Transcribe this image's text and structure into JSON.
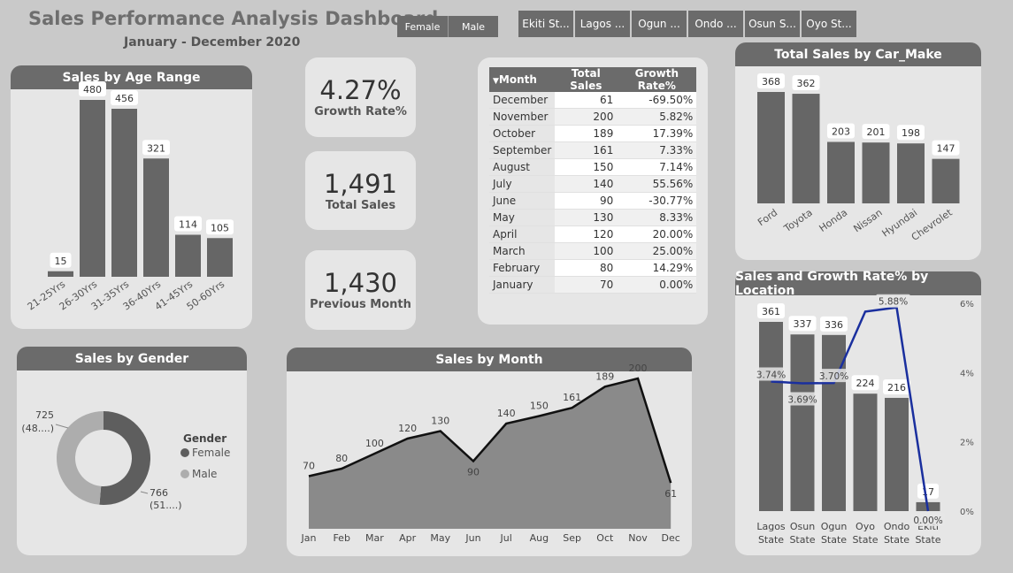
{
  "header": {
    "title": "Sales Performance Analysis Dashboard",
    "subtitle": "January - December 2020"
  },
  "gender_slicer": [
    "Female",
    "Male"
  ],
  "state_slicer": [
    "Ekiti St...",
    "Lagos ...",
    "Ogun ...",
    "Ondo ...",
    "Osun S...",
    "Oyo St..."
  ],
  "kpis": {
    "growth_rate": {
      "value": "4.27%",
      "label": "Growth Rate%"
    },
    "total_sales": {
      "value": "1,491",
      "label": "Total Sales"
    },
    "previous_month": {
      "value": "1,430",
      "label": "Previous Month"
    }
  },
  "colors": {
    "bar": "#666666",
    "line": "#1a2f9e",
    "area": "#8a8a8a",
    "panel": "#e6e6e6",
    "header": "#6b6b6b"
  },
  "chart_data": [
    {
      "type": "bar",
      "title": "Sales by Age Range",
      "categories": [
        "21-25Yrs",
        "26-30Yrs",
        "31-35Yrs",
        "36-40Yrs",
        "41-45Yrs",
        "50-60Yrs"
      ],
      "values": [
        15,
        480,
        456,
        321,
        114,
        105
      ]
    },
    {
      "type": "table",
      "columns": [
        "Month",
        "Total Sales",
        "Growth Rate%"
      ],
      "rows": [
        [
          "December",
          "61",
          "-69.50%"
        ],
        [
          "November",
          "200",
          "5.82%"
        ],
        [
          "October",
          "189",
          "17.39%"
        ],
        [
          "September",
          "161",
          "7.33%"
        ],
        [
          "August",
          "150",
          "7.14%"
        ],
        [
          "July",
          "140",
          "55.56%"
        ],
        [
          "June",
          "90",
          "-30.77%"
        ],
        [
          "May",
          "130",
          "8.33%"
        ],
        [
          "April",
          "120",
          "20.00%"
        ],
        [
          "March",
          "100",
          "25.00%"
        ],
        [
          "February",
          "80",
          "14.29%"
        ],
        [
          "January",
          "70",
          "0.00%"
        ]
      ]
    },
    {
      "type": "bar",
      "title": "Total Sales by Car_Make",
      "categories": [
        "Ford",
        "Toyota",
        "Honda",
        "Nissan",
        "Hyundai",
        "Chevrolet"
      ],
      "values": [
        368,
        362,
        203,
        201,
        198,
        147
      ]
    },
    {
      "type": "pie",
      "title": "Sales by Gender",
      "legend_title": "Gender",
      "legend_position": "right",
      "slices": [
        {
          "name": "Female",
          "value": 766,
          "label": "766",
          "pct_label": "(51....)",
          "color": "#5e5e5e"
        },
        {
          "name": "Male",
          "value": 725,
          "label": "725",
          "pct_label": "(48....)",
          "color": "#adadad"
        }
      ]
    },
    {
      "type": "area",
      "title": "Sales by Month",
      "categories": [
        "Jan",
        "Feb",
        "Mar",
        "Apr",
        "May",
        "Jun",
        "Jul",
        "Aug",
        "Sep",
        "Oct",
        "Nov",
        "Dec"
      ],
      "values": [
        70,
        80,
        100,
        120,
        130,
        90,
        140,
        150,
        161,
        189,
        200,
        61
      ]
    },
    {
      "type": "bar",
      "title": "Sales and Growth Rate% by Location",
      "categories": [
        "Lagos State",
        "Osun State",
        "Ogun State",
        "Oyo State",
        "Ondo State",
        "Ekiti State"
      ],
      "series": [
        {
          "values": [
            361,
            337,
            336,
            224,
            216,
            17
          ]
        },
        {
          "type": "line",
          "values": [
            3.74,
            3.69,
            3.7,
            5.76,
            5.88,
            0.0
          ],
          "labels": [
            "3.74%",
            "3.69%",
            "3.70%",
            "",
            "5.88%",
            "0.00%"
          ]
        }
      ],
      "y2_ticks": [
        "0%",
        "2%",
        "4%",
        "6%"
      ],
      "y2lim": [
        0,
        6
      ]
    }
  ]
}
